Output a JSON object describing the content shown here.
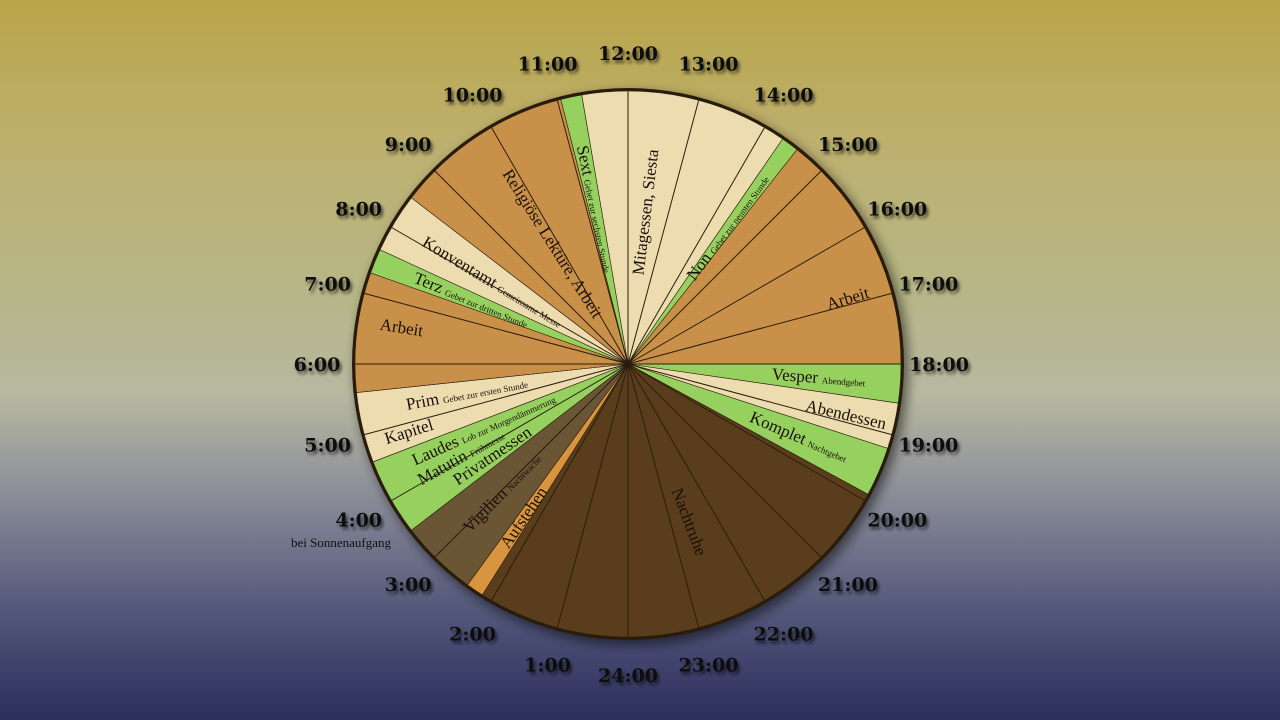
{
  "diagram": {
    "hour_labels": [
      "24:00",
      "1:00",
      "2:00",
      "3:00",
      "4:00",
      "5:00",
      "6:00",
      "7:00",
      "8:00",
      "9:00",
      "10:00",
      "11:00",
      "12:00",
      "13:00",
      "14:00",
      "15:00",
      "16:00",
      "17:00",
      "18:00",
      "19:00",
      "20:00",
      "21:00",
      "22:00",
      "23:00"
    ],
    "hour_note": "bei Sonnenaufgang",
    "colors": {
      "night": "#5a3e1c",
      "vigil": "#6b5535",
      "rise": "#d9943f",
      "prayer": "#96d160",
      "light": "#ecdcb0",
      "work": "#c99049"
    },
    "segments": [
      {
        "start": 0.0,
        "end": 2.15,
        "color": "night"
      },
      {
        "start": 2.15,
        "end": 2.4,
        "color": "rise"
      },
      {
        "start": 2.4,
        "end": 3.5,
        "color": "vigil"
      },
      {
        "start": 3.5,
        "end": 4.6,
        "color": "prayer"
      },
      {
        "start": 4.6,
        "end": 5.6,
        "color": "light"
      },
      {
        "start": 5.6,
        "end": 7.3,
        "color": "work"
      },
      {
        "start": 7.3,
        "end": 7.65,
        "color": "prayer"
      },
      {
        "start": 7.65,
        "end": 8.5,
        "color": "light"
      },
      {
        "start": 8.5,
        "end": 11.05,
        "color": "work"
      },
      {
        "start": 11.05,
        "end": 11.35,
        "color": "prayer"
      },
      {
        "start": 11.35,
        "end": 14.3,
        "color": "light"
      },
      {
        "start": 14.3,
        "end": 14.55,
        "color": "prayer"
      },
      {
        "start": 14.55,
        "end": 18.0,
        "color": "work"
      },
      {
        "start": 18.0,
        "end": 18.55,
        "color": "prayer"
      },
      {
        "start": 18.55,
        "end": 19.2,
        "color": "light"
      },
      {
        "start": 19.2,
        "end": 19.9,
        "color": "prayer"
      },
      {
        "start": 19.9,
        "end": 24.0,
        "color": "night"
      }
    ],
    "labels": [
      {
        "main": "Nachtruhe",
        "sub": "",
        "hour": 22.6,
        "r": 0.62
      },
      {
        "main": "Aufstehen",
        "sub": "",
        "hour": 2.27,
        "r": 0.68
      },
      {
        "main": "Vigilien",
        "sub": "Nachtwache",
        "hour": 2.95,
        "r": 0.66
      },
      {
        "main": "Privatmessen",
        "sub": "",
        "hour": 3.72,
        "r": 0.6
      },
      {
        "main": "Matutin",
        "sub": "Frühmesse",
        "hour": 4.05,
        "r": 0.7
      },
      {
        "main": "Laudes",
        "sub": "Lob zur Morgendämmerung",
        "hour": 4.38,
        "r": 0.58
      },
      {
        "main": "Kapitel",
        "sub": "",
        "hour": 4.85,
        "r": 0.84
      },
      {
        "main": "Prim",
        "sub": "Gebet zur ersten Stunde",
        "hour": 5.3,
        "r": 0.6
      },
      {
        "main": "Arbeit",
        "sub": "",
        "hour": 6.6,
        "r": 0.84
      },
      {
        "main": "Terz",
        "sub": "Gebet zur dritten Stunde",
        "hour": 7.47,
        "r": 0.62
      },
      {
        "main": "Konventamt",
        "sub": "Gemeinsame Messe",
        "hour": 8.07,
        "r": 0.58
      },
      {
        "main": "Religiöse Lektüre, Arbeit",
        "sub": "",
        "hour": 9.85,
        "r": 0.52
      },
      {
        "main": "Sext",
        "sub": "Gebet zur sechsten Stunde",
        "hour": 11.2,
        "r": 0.58
      },
      {
        "main": "Mitagessen, Siesta",
        "sub": "",
        "hour": 12.45,
        "r": 0.56
      },
      {
        "main": "Non",
        "sub": "Gebet zur neunten Stunde",
        "hour": 14.42,
        "r": 0.62
      },
      {
        "main": "Arbeit",
        "sub": "",
        "hour": 16.9,
        "r": 0.84
      },
      {
        "main": "Vesper",
        "sub": "Abendgebet",
        "hour": 18.28,
        "r": 0.7
      },
      {
        "main": "Abendessen",
        "sub": "",
        "hour": 18.88,
        "r": 0.82
      },
      {
        "main": "Komplet",
        "sub": "Nachtgebet",
        "hour": 19.55,
        "r": 0.68
      }
    ]
  }
}
